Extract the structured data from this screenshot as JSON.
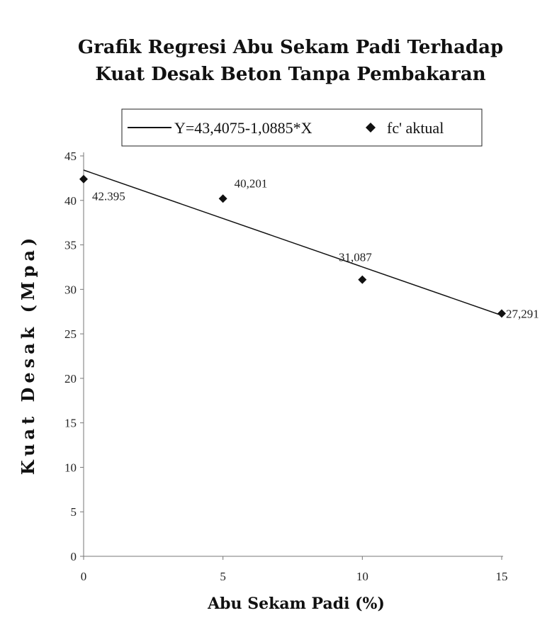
{
  "chart_data": {
    "type": "scatter",
    "title": "Grafik  Regresi Abu Sekam Padi Terhadap",
    "subtitle": "Kuat Desak Beton Tanpa Pembakaran",
    "xlabel": "Abu Sekam Padi (%)",
    "ylabel": "Kuat Desak (Mpa)",
    "xlim": [
      0,
      15
    ],
    "ylim": [
      0,
      45
    ],
    "x_ticks": [
      "0",
      "5",
      "10",
      "15"
    ],
    "y_ticks": [
      "0",
      "5",
      "10",
      "15",
      "20",
      "25",
      "30",
      "35",
      "40",
      "45"
    ],
    "grid": false,
    "legend_position": "top",
    "series": [
      {
        "name": "Y=43,4075-1,0885*X",
        "kind": "line",
        "intercept": 43.4075,
        "slope": -1.0885,
        "x": [
          0,
          15
        ],
        "y": [
          43.4075,
          27.08
        ]
      },
      {
        "name": "fc' aktual",
        "kind": "scatter",
        "marker": "diamond",
        "x": [
          0,
          5,
          10,
          15
        ],
        "y": [
          42.395,
          40.201,
          31.087,
          27.291
        ],
        "labels": [
          "42.395",
          "40,201",
          "31,087",
          "27,291"
        ]
      }
    ]
  }
}
